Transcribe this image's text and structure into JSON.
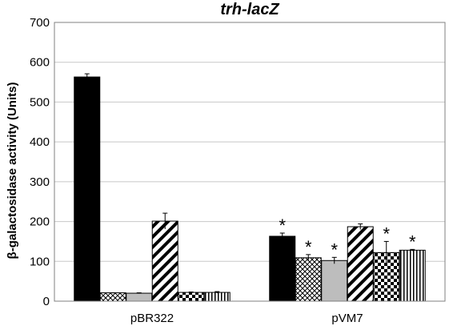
{
  "chart_data": {
    "type": "bar",
    "title": "trh-lacZ",
    "ylabel": "β-galactosidase activity (Units)",
    "xlabel": "",
    "ylim": [
      0,
      700
    ],
    "yticks": [
      0,
      100,
      200,
      300,
      400,
      500,
      600,
      700
    ],
    "grid": true,
    "legend": "none",
    "categories": [
      "pBR322",
      "pVM7"
    ],
    "series": [
      {
        "pattern": "solid-black",
        "values": [
          563,
          163
        ],
        "errors": [
          8,
          8
        ],
        "significant": [
          false,
          true
        ]
      },
      {
        "pattern": "crosshatch",
        "values": [
          21,
          109
        ],
        "errors": [
          0,
          8
        ],
        "significant": [
          false,
          true
        ]
      },
      {
        "pattern": "solid-gray",
        "values": [
          20,
          102
        ],
        "errors": [
          1,
          8
        ],
        "significant": [
          false,
          true
        ]
      },
      {
        "pattern": "wide-diagonal",
        "values": [
          201,
          187
        ],
        "errors": [
          20,
          7
        ],
        "significant": [
          false,
          false
        ]
      },
      {
        "pattern": "checkerboard",
        "values": [
          22,
          122
        ],
        "errors": [
          1,
          28
        ],
        "significant": [
          false,
          true
        ]
      },
      {
        "pattern": "vertical-stripes",
        "values": [
          22,
          128
        ],
        "errors": [
          2,
          2
        ],
        "significant": [
          false,
          true
        ]
      }
    ],
    "significance_marker": "*"
  }
}
